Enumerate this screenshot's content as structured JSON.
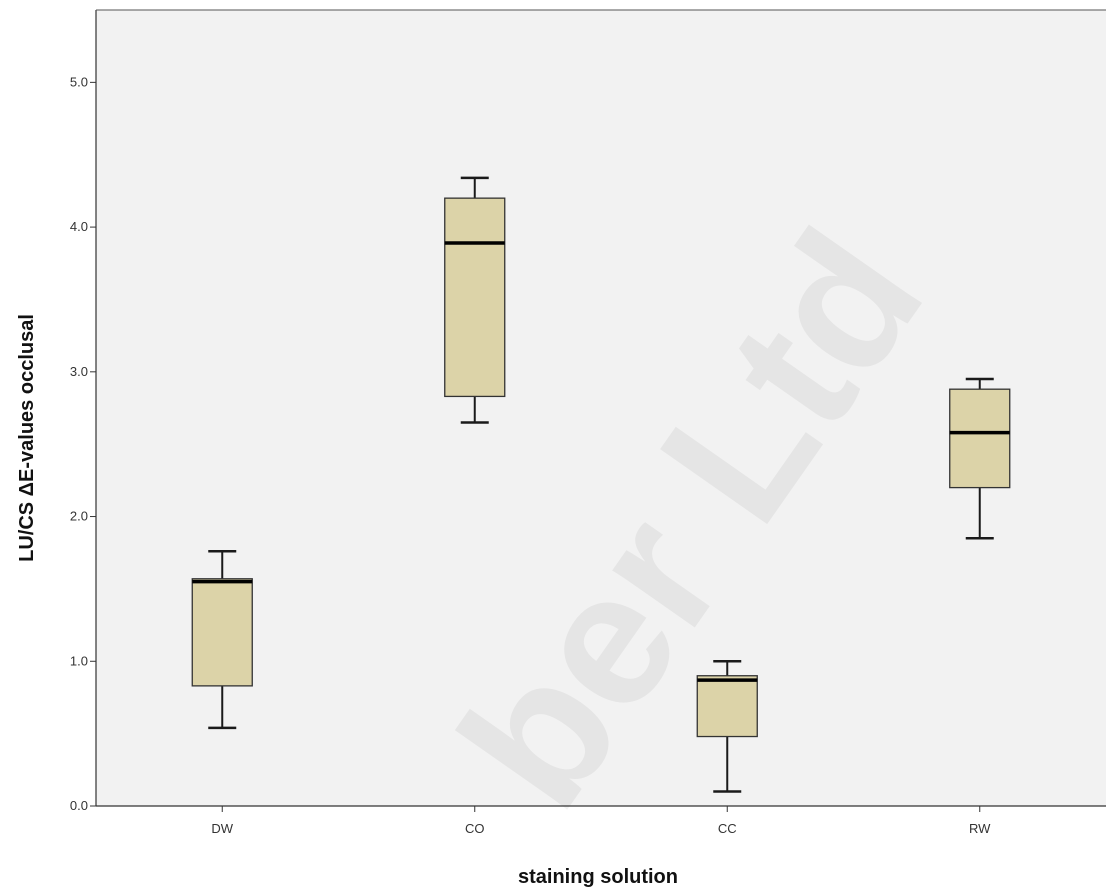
{
  "chart_data": {
    "type": "box",
    "categories": [
      "DW",
      "CO",
      "CC",
      "RW"
    ],
    "boxes": [
      {
        "category": "DW",
        "whisker_low": 0.54,
        "q1": 0.83,
        "median": 1.55,
        "q3": 1.57,
        "whisker_high": 1.76
      },
      {
        "category": "CO",
        "whisker_low": 2.65,
        "q1": 2.83,
        "median": 3.89,
        "q3": 4.2,
        "whisker_high": 4.34
      },
      {
        "category": "CC",
        "whisker_low": 0.1,
        "q1": 0.48,
        "median": 0.87,
        "q3": 0.9,
        "whisker_high": 1.0
      },
      {
        "category": "RW",
        "whisker_low": 1.85,
        "q1": 2.2,
        "median": 2.58,
        "q3": 2.88,
        "whisker_high": 2.95
      }
    ],
    "xlabel": "staining solution",
    "ylabel": "LU/CS ΔE-values occlusal",
    "ylim": [
      0,
      5.5
    ],
    "yticks": [
      {
        "value": 0,
        "label": "0.0"
      },
      {
        "value": 1,
        "label": "1.0"
      },
      {
        "value": 2,
        "label": "2.0"
      },
      {
        "value": 3,
        "label": "3.0"
      },
      {
        "value": 4,
        "label": "4.0"
      },
      {
        "value": 5,
        "label": "5.0"
      }
    ],
    "grid": false,
    "colors": {
      "box_fill": "#dcd3a8",
      "plot_background": "#f2f2f2",
      "line": "#1a1a1a"
    }
  },
  "watermark": "ber Ltd"
}
